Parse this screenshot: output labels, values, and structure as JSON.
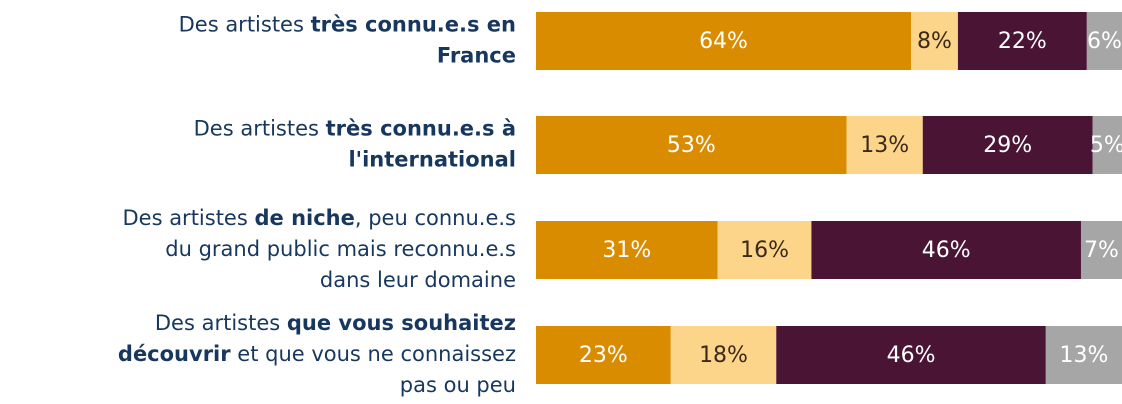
{
  "chart_data": {
    "type": "stacked-bar-horizontal",
    "categories": [
      [
        [
          {
            "text": "Des artistes ",
            "bold": false
          },
          {
            "text": "très connu.e.s en",
            "bold": true
          }
        ],
        [
          {
            "text": "France",
            "bold": true
          }
        ]
      ],
      [
        [
          {
            "text": "Des artistes ",
            "bold": false
          },
          {
            "text": "très connu.e.s à",
            "bold": true
          }
        ],
        [
          {
            "text": "l'international",
            "bold": true
          }
        ]
      ],
      [
        [
          {
            "text": "Des artistes ",
            "bold": false
          },
          {
            "text": "de niche",
            "bold": true
          },
          {
            "text": ", peu connu.e.s",
            "bold": false
          }
        ],
        [
          {
            "text": "du grand public mais reconnu.e.s",
            "bold": false
          }
        ],
        [
          {
            "text": "dans leur domaine",
            "bold": false
          }
        ]
      ],
      [
        [
          {
            "text": "Des artistes ",
            "bold": false
          },
          {
            "text": "que vous souhaitez",
            "bold": true
          }
        ],
        [
          {
            "text": "découvrir",
            "bold": true
          },
          {
            "text": " et que vous ne connaissez",
            "bold": false
          }
        ],
        [
          {
            "text": "pas ou peu",
            "bold": false
          }
        ]
      ]
    ],
    "series": [
      {
        "color": "#d98c00",
        "values": [
          64,
          53,
          31,
          23
        ],
        "value_labels": [
          "64%",
          "53%",
          "31%",
          "23%"
        ]
      },
      {
        "color": "#fdd58a",
        "values": [
          8,
          13,
          16,
          18
        ],
        "value_labels": [
          "8%",
          "13%",
          "16%",
          "18%"
        ]
      },
      {
        "color": "#4a1535",
        "values": [
          22,
          29,
          46,
          46
        ],
        "value_labels": [
          "22%",
          "29%",
          "46%",
          "46%"
        ]
      },
      {
        "color": "#a6a6a6",
        "values": [
          6,
          5,
          7,
          13
        ],
        "value_labels": [
          "6%",
          "5%",
          "7%",
          "13%"
        ]
      }
    ],
    "xlim": [
      0,
      100
    ]
  }
}
